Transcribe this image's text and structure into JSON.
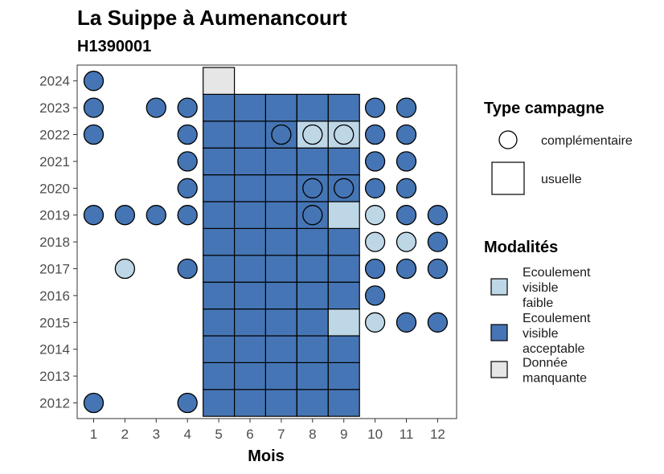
{
  "chart_data": {
    "type": "heatmap",
    "title": "La Suippe à Aumenancourt",
    "subtitle": "H1390001",
    "xlabel": "Mois",
    "ylabel": "",
    "x_ticks": [
      1,
      2,
      3,
      4,
      5,
      6,
      7,
      8,
      9,
      10,
      11,
      12
    ],
    "y_ticks": [
      2012,
      2013,
      2014,
      2015,
      2016,
      2017,
      2018,
      2019,
      2020,
      2021,
      2022,
      2023,
      2024
    ],
    "colors": {
      "faible": "#bdd7e7",
      "acceptable": "#4575b4",
      "manquante": "#e6e6e6",
      "outline": "#000000",
      "panel_border": "#333333"
    },
    "legend_shape": {
      "title": "Type campagne",
      "items": [
        {
          "shape": "circle",
          "label": "complémentaire"
        },
        {
          "shape": "square",
          "label": "usuelle"
        }
      ]
    },
    "legend_fill": {
      "title": "Modalités",
      "items": [
        {
          "key": "faible",
          "lines": [
            "Ecoulement",
            "visible",
            "faible"
          ]
        },
        {
          "key": "acceptable",
          "lines": [
            "Ecoulement",
            "visible",
            "acceptable"
          ]
        },
        {
          "key": "manquante",
          "lines": [
            "Donnée",
            "manquante"
          ]
        }
      ]
    },
    "usuelle": [
      {
        "year": 2012,
        "months": [
          5,
          6,
          7,
          8,
          9
        ],
        "value": "acceptable"
      },
      {
        "year": 2013,
        "months": [
          5,
          6,
          7,
          8,
          9
        ],
        "value": "acceptable"
      },
      {
        "year": 2014,
        "months": [
          5,
          6,
          7,
          8,
          9
        ],
        "value": "acceptable"
      },
      {
        "year": 2015,
        "months": [
          5,
          6,
          7,
          8
        ],
        "value": "acceptable"
      },
      {
        "year": 2015,
        "months": [
          9
        ],
        "value": "faible"
      },
      {
        "year": 2016,
        "months": [
          5,
          6,
          7,
          8,
          9
        ],
        "value": "acceptable"
      },
      {
        "year": 2017,
        "months": [
          5,
          6,
          7,
          8,
          9
        ],
        "value": "acceptable"
      },
      {
        "year": 2018,
        "months": [
          5,
          6,
          7,
          8,
          9
        ],
        "value": "acceptable"
      },
      {
        "year": 2019,
        "months": [
          5,
          6,
          7,
          8
        ],
        "value": "acceptable"
      },
      {
        "year": 2019,
        "months": [
          9
        ],
        "value": "faible"
      },
      {
        "year": 2020,
        "months": [
          5,
          6,
          7,
          8,
          9
        ],
        "value": "acceptable"
      },
      {
        "year": 2021,
        "months": [
          5,
          6,
          7,
          8,
          9
        ],
        "value": "acceptable"
      },
      {
        "year": 2022,
        "months": [
          5,
          6,
          7
        ],
        "value": "acceptable"
      },
      {
        "year": 2022,
        "months": [
          8,
          9
        ],
        "value": "faible"
      },
      {
        "year": 2023,
        "months": [
          5,
          6,
          7,
          8,
          9
        ],
        "value": "acceptable"
      },
      {
        "year": 2024,
        "months": [
          5
        ],
        "value": "manquante"
      }
    ],
    "complementaire": [
      {
        "year": 2012,
        "months": [
          1,
          4
        ],
        "value": "acceptable"
      },
      {
        "year": 2015,
        "months": [
          10
        ],
        "value": "faible"
      },
      {
        "year": 2015,
        "months": [
          11,
          12
        ],
        "value": "acceptable"
      },
      {
        "year": 2016,
        "months": [
          10
        ],
        "value": "acceptable"
      },
      {
        "year": 2017,
        "months": [
          2
        ],
        "value": "faible"
      },
      {
        "year": 2017,
        "months": [
          4,
          10,
          11,
          12
        ],
        "value": "acceptable"
      },
      {
        "year": 2018,
        "months": [
          10,
          11
        ],
        "value": "faible"
      },
      {
        "year": 2018,
        "months": [
          12
        ],
        "value": "acceptable"
      },
      {
        "year": 2019,
        "months": [
          1,
          2,
          3,
          4,
          8,
          11,
          12
        ],
        "value": "acceptable"
      },
      {
        "year": 2019,
        "months": [
          10
        ],
        "value": "faible"
      },
      {
        "year": 2020,
        "months": [
          4,
          8,
          9,
          10,
          11
        ],
        "value": "acceptable"
      },
      {
        "year": 2021,
        "months": [
          4,
          10,
          11
        ],
        "value": "acceptable"
      },
      {
        "year": 2022,
        "months": [
          1,
          4,
          7,
          10,
          11
        ],
        "value": "acceptable"
      },
      {
        "year": 2022,
        "months": [
          8,
          9
        ],
        "value": "faible"
      },
      {
        "year": 2023,
        "months": [
          1,
          3,
          4,
          10,
          11
        ],
        "value": "acceptable"
      },
      {
        "year": 2024,
        "months": [
          1
        ],
        "value": "acceptable"
      }
    ]
  }
}
